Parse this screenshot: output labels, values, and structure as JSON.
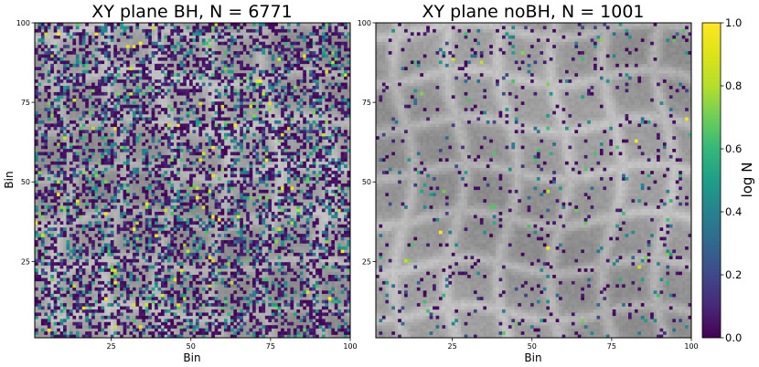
{
  "chart_data": [
    {
      "type": "heatmap",
      "title": "XY plane BH, N = 6771",
      "xlabel": "Bin",
      "ylabel": "Bin",
      "xlim": [
        1,
        100
      ],
      "ylim": [
        1,
        100
      ],
      "xticks": [
        "25",
        "50",
        "75",
        "100"
      ],
      "yticks": [
        "25",
        "50",
        "75",
        "100"
      ],
      "bins": [
        100,
        100
      ],
      "background": "grayscale density map",
      "colormap": "viridis",
      "overlay_fill_fraction": 0.45,
      "overlay_value_distribution": "mostly 0.0-0.1 (dark purple), many 0.3-0.5 (teal), occasional 0.7-1.0 (green-yellow)"
    },
    {
      "type": "heatmap",
      "title": "XY plane noBH, N = 1001",
      "xlabel": "Bin",
      "ylabel": "",
      "xlim": [
        1,
        100
      ],
      "ylim": [
        1,
        100
      ],
      "xticks": [
        "25",
        "50",
        "75",
        "100"
      ],
      "yticks": [
        "25",
        "50",
        "75",
        "100"
      ],
      "bins": [
        100,
        100
      ],
      "background": "grayscale density map",
      "colormap": "viridis",
      "overlay_fill_fraction": 0.07,
      "overlay_value_distribution": "mostly 0.0-0.1 (dark purple), few teal, rare yellow"
    }
  ],
  "colorbar": {
    "label": "log N",
    "ticks": [
      "0.0",
      "0.2",
      "0.4",
      "0.6",
      "0.8",
      "1.0"
    ],
    "range": [
      0,
      1
    ],
    "colormap": "viridis"
  }
}
